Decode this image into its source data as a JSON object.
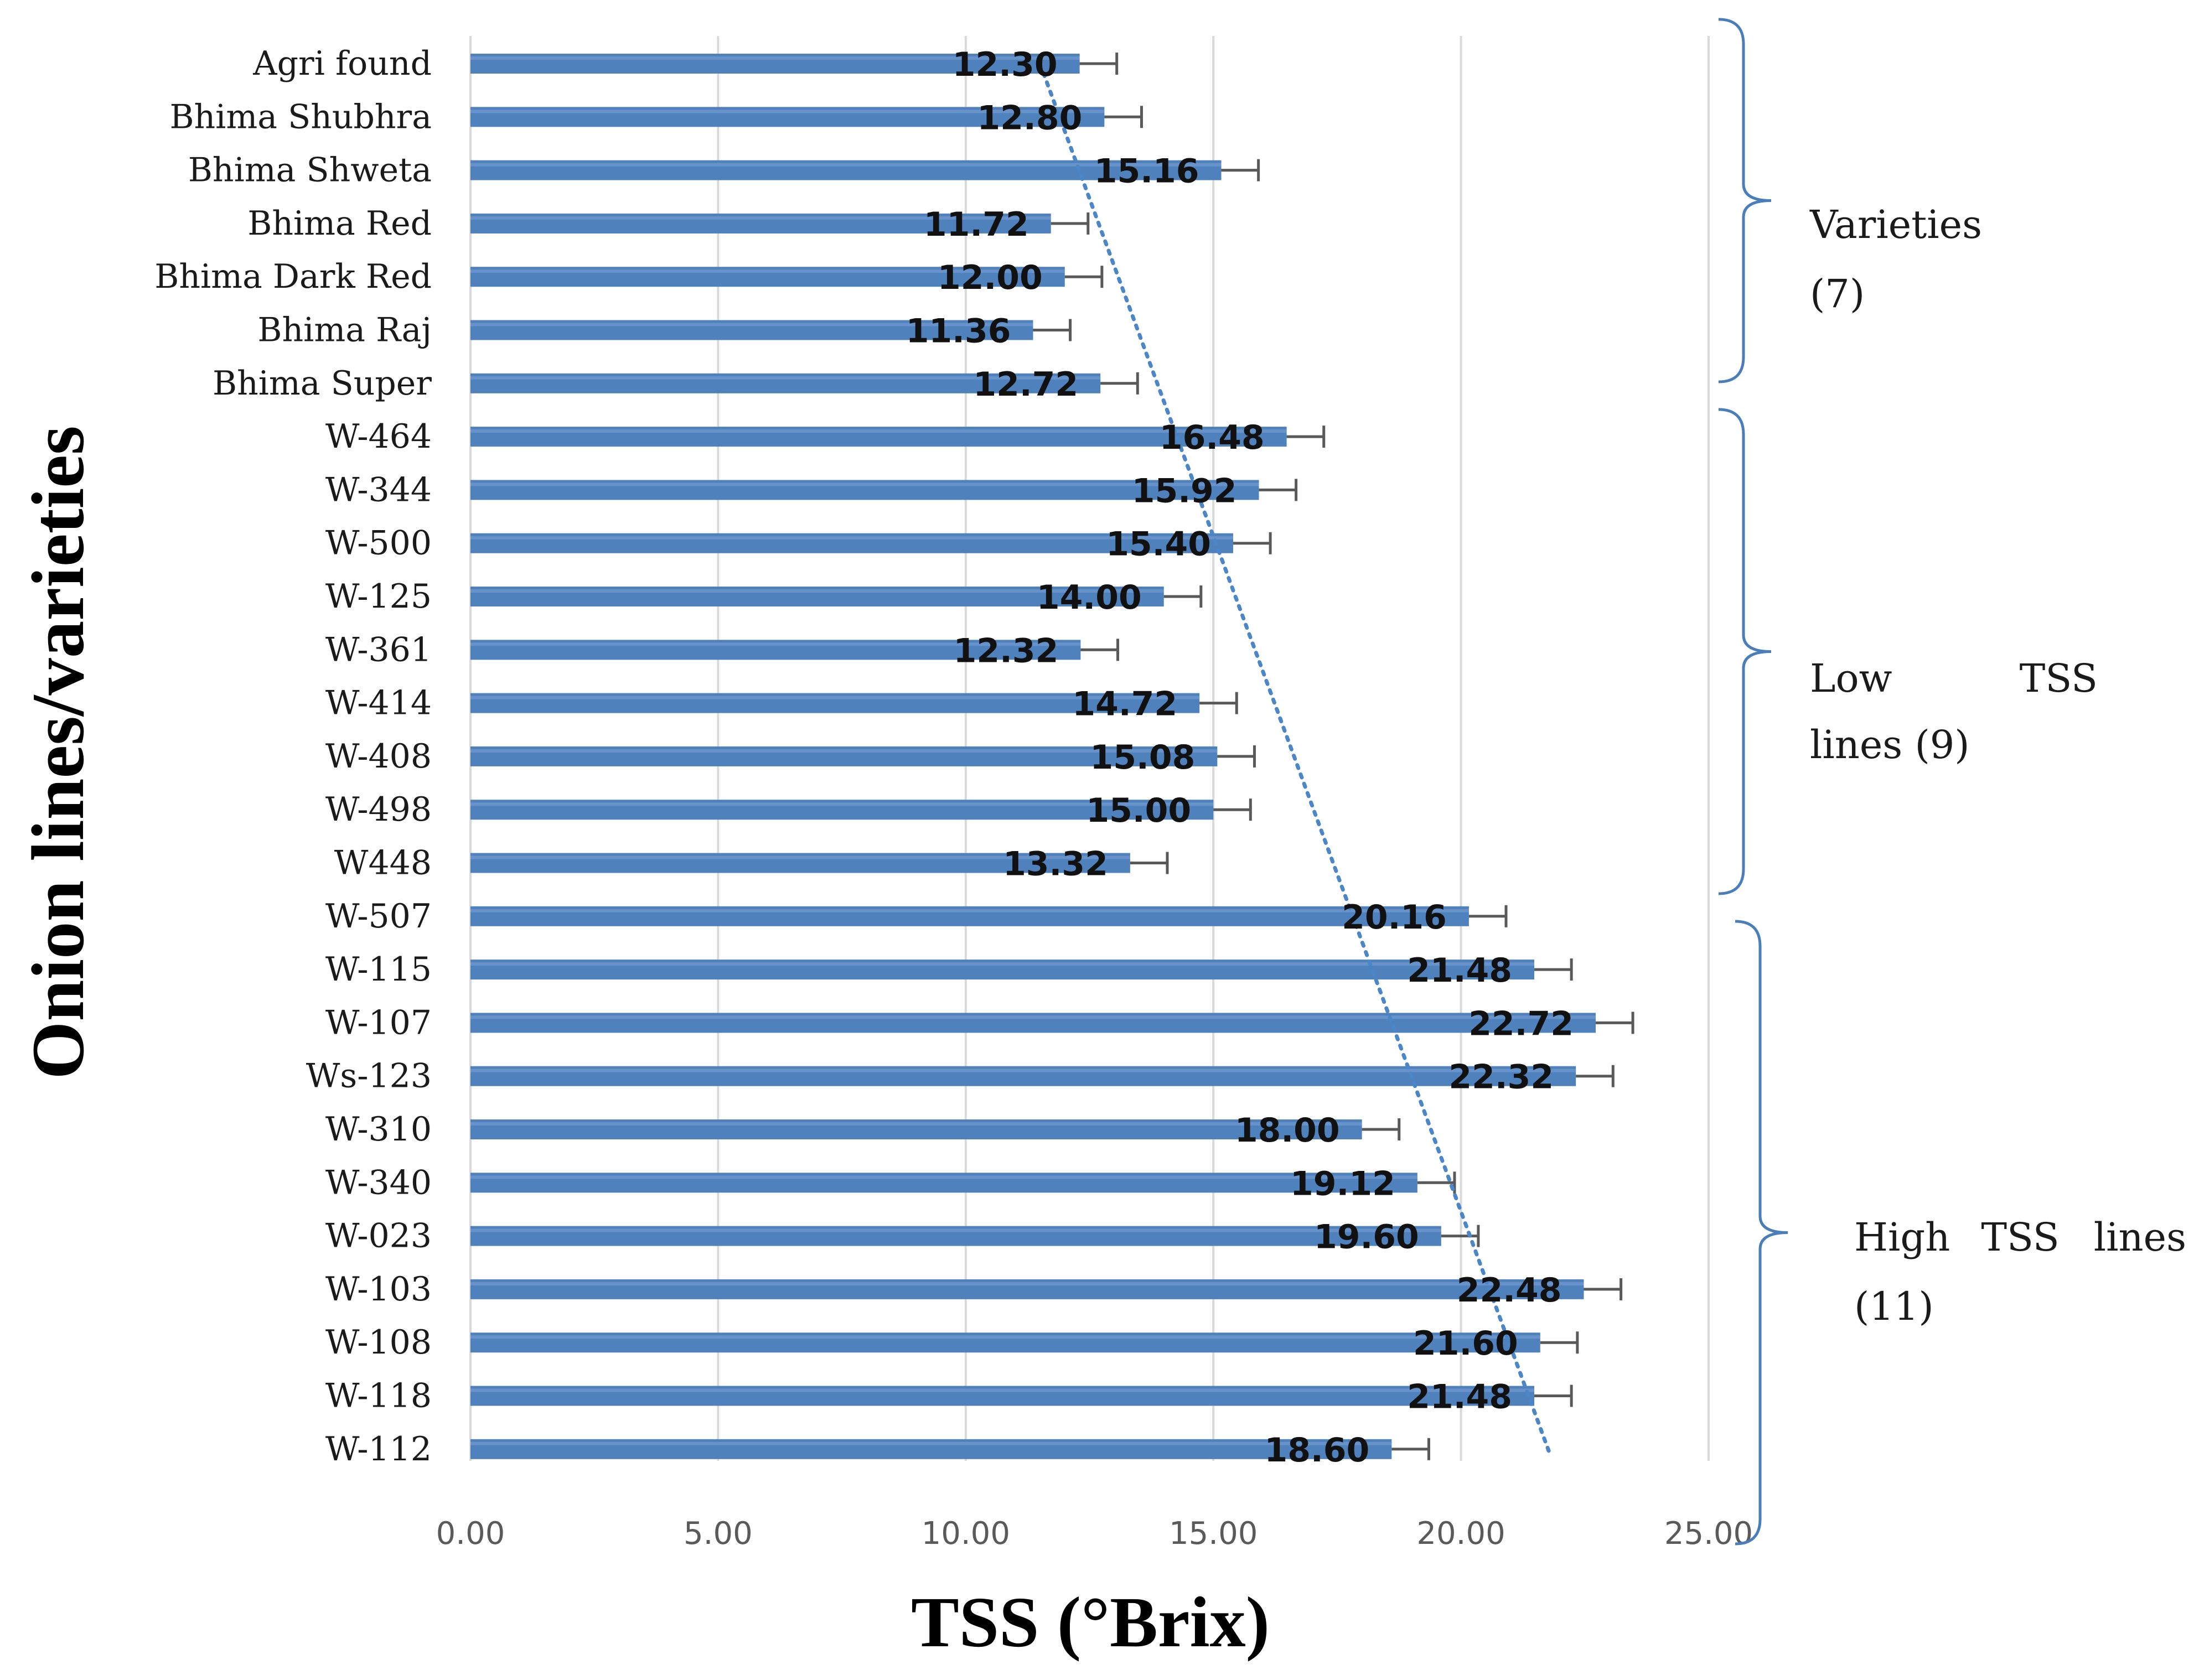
{
  "chart_data": {
    "type": "bar",
    "orientation": "horizontal",
    "title": "",
    "xlabel": "TSS (°Brix)",
    "ylabel": "Onion lines/varieties",
    "xlim": [
      0,
      25
    ],
    "xticks": [
      "0.00",
      "5.00",
      "10.00",
      "15.00",
      "20.00",
      "25.00"
    ],
    "categories": [
      "Agri found",
      "Bhima Shubhra",
      "Bhima Shweta",
      "Bhima Red",
      "Bhima Dark Red",
      "Bhima Raj",
      "Bhima Super",
      "W-464",
      "W-344",
      "W-500",
      "W-125",
      "W-361",
      "W-414",
      "W-408",
      "W-498",
      "W448",
      "W-507",
      "W-115",
      "W-107",
      "Ws-123",
      "W-310",
      "W-340",
      "W-023",
      "W-103",
      "W-108",
      "W-118",
      "W-112"
    ],
    "values": [
      12.3,
      12.8,
      15.16,
      11.72,
      12.0,
      11.36,
      12.72,
      16.48,
      15.92,
      15.4,
      14.0,
      12.32,
      14.72,
      15.08,
      15.0,
      13.32,
      20.16,
      21.48,
      22.72,
      22.32,
      18.0,
      19.12,
      19.6,
      22.48,
      21.6,
      21.48,
      18.6
    ],
    "value_labels": [
      "12.30",
      "12.80",
      "15.16",
      "11.72",
      "12.00",
      "11.36",
      "12.72",
      "16.48",
      "15.92",
      "15.40",
      "14.00",
      "12.32",
      "14.72",
      "15.08",
      "15.00",
      "13.32",
      "20.16",
      "21.48",
      "22.72",
      "22.32",
      "18.00",
      "19.12",
      "19.60",
      "22.48",
      "21.60",
      "21.48",
      "18.60"
    ],
    "error": 0.75,
    "trendline": {
      "style": "dotted",
      "from": 11.5,
      "to": 21.8
    },
    "groups": [
      {
        "label_lines": [
          "Varieties",
          "(7)"
        ],
        "start": 0,
        "end": 6
      },
      {
        "label_lines": [
          "Low",
          "TSS",
          "lines (9)"
        ],
        "start": 7,
        "end": 15
      },
      {
        "label_lines": [
          "High",
          "TSS",
          "lines",
          "(11)"
        ],
        "start": 16,
        "end": 26
      }
    ],
    "grid": true,
    "legend": "none"
  },
  "colors": {
    "bar": "#4f81bd",
    "bar_highlight": "#7da3d6",
    "error": "#595959",
    "grid": "#d9d9d9",
    "trend": "#4a86c8",
    "bracket": "#4a7ebb"
  }
}
